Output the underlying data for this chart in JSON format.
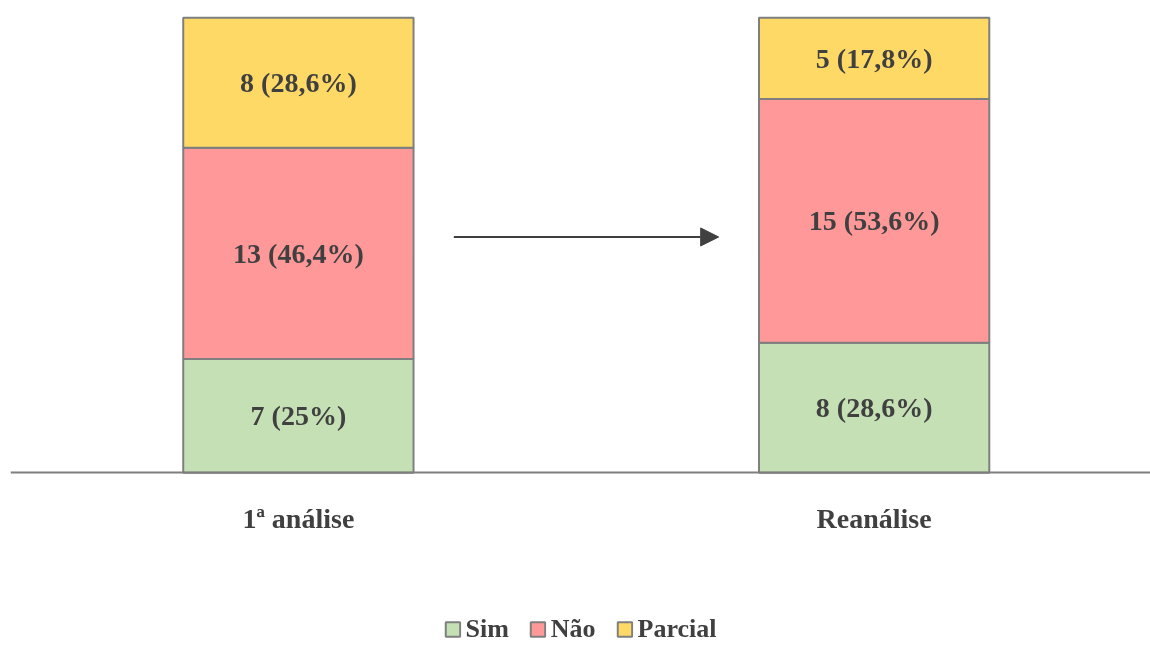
{
  "chart_data": {
    "type": "bar",
    "stacked": true,
    "categories": [
      "1ª análise",
      "Reanálise"
    ],
    "series": [
      {
        "name": "Sim",
        "color": "#c5e0b4",
        "values": [
          7,
          8
        ],
        "value_labels": [
          "7 (25%)",
          "8 (28,6%)"
        ]
      },
      {
        "name": "Não",
        "color": "#ff9999",
        "values": [
          13,
          15
        ],
        "value_labels": [
          "13 (46,4%)",
          "15 (53,6%)"
        ]
      },
      {
        "name": "Parcial",
        "color": "#ffd966",
        "values": [
          8,
          5
        ],
        "value_labels": [
          "8 (28,6%)",
          "5 (17,8%)"
        ]
      }
    ],
    "legend": "bottom",
    "grid": false
  }
}
